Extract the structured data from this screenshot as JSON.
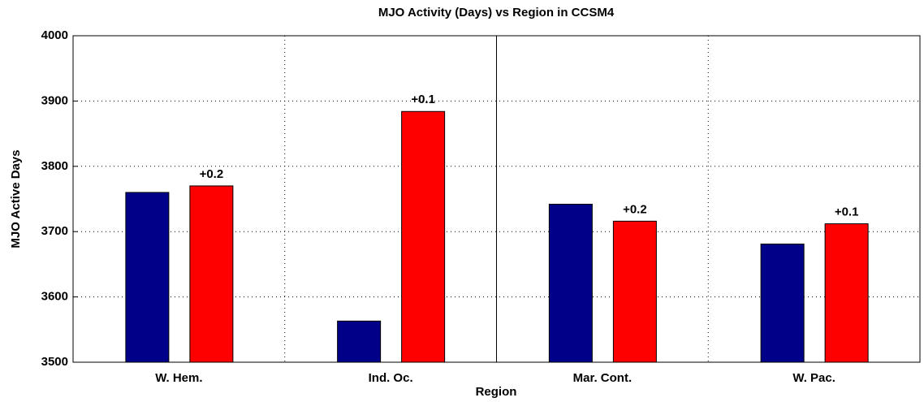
{
  "chart_data": {
    "type": "bar",
    "title": "MJO Activity (Days) vs Region in CCSM4",
    "xlabel": "Region",
    "ylabel": "MJO Active Days",
    "categories": [
      "W. Hem.",
      "Ind. Oc.",
      "Mar. Cont.",
      "W. Pac."
    ],
    "series": [
      {
        "color": "#000088",
        "values": [
          3760,
          3563,
          3742,
          3681
        ]
      },
      {
        "color": "#ff0000",
        "values": [
          3770,
          3884,
          3716,
          3712
        ],
        "annotations": [
          "+0.2",
          "+0.1",
          "+0.2",
          "+0.1"
        ]
      }
    ],
    "ylim": [
      3500,
      4000
    ],
    "yticks": [
      3500,
      3600,
      3700,
      3800,
      3900,
      4000
    ],
    "grid": true
  }
}
